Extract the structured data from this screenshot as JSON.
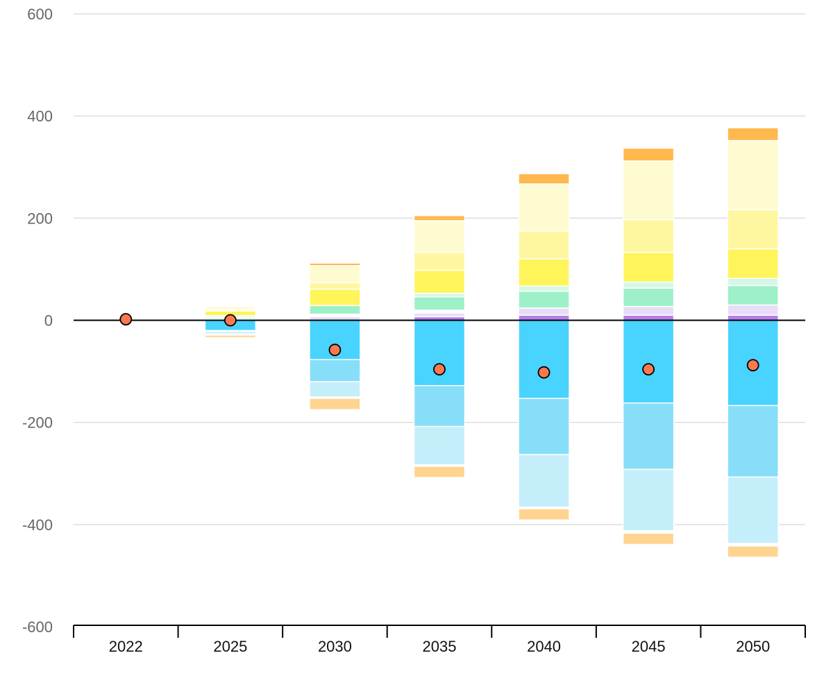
{
  "chart_data": {
    "type": "bar",
    "stacked": true,
    "categories": [
      "2022",
      "2025",
      "2030",
      "2035",
      "2040",
      "2045",
      "2050"
    ],
    "ylim": [
      -600,
      600
    ],
    "yticks": [
      600,
      400,
      200,
      0,
      -200,
      -400,
      -600
    ],
    "grid": true,
    "legend": "none",
    "title": "",
    "xlabel": "",
    "ylabel": "",
    "positive_series": [
      {
        "color": "#b57ee8",
        "values": [
          0,
          0,
          0,
          7,
          10,
          10,
          10
        ]
      },
      {
        "color": "#e8dcf8",
        "values": [
          0,
          0,
          7,
          7,
          14,
          17,
          20
        ]
      },
      {
        "color": "#ffffff",
        "values": [
          0,
          3,
          5,
          6,
          0,
          0,
          0
        ]
      },
      {
        "color": "#9ef0c8",
        "values": [
          0,
          3,
          17,
          26,
          33,
          36,
          38
        ]
      },
      {
        "color": "#d4f8e6",
        "values": [
          0,
          3,
          0,
          7,
          10,
          12,
          14
        ]
      },
      {
        "color": "#fff45a",
        "values": [
          0,
          9,
          32,
          45,
          53,
          58,
          58
        ]
      },
      {
        "color": "#fff7a0",
        "values": [
          0,
          3,
          13,
          35,
          55,
          64,
          77
        ]
      },
      {
        "color": "#fffbd0",
        "values": [
          0,
          6,
          33,
          62,
          92,
          115,
          135
        ]
      },
      {
        "color": "#ffb84d",
        "values": [
          0,
          0,
          5,
          10,
          20,
          25,
          25
        ]
      }
    ],
    "negative_series": [
      {
        "color": "#49d3ff",
        "values": [
          0,
          -20,
          -77,
          -128,
          -153,
          -162,
          -167
        ]
      },
      {
        "color": "#87def8",
        "values": [
          0,
          -2,
          -43,
          -80,
          -110,
          -130,
          -140
        ]
      },
      {
        "color": "#c5eefb",
        "values": [
          0,
          -5,
          -30,
          -75,
          -103,
          -120,
          -130
        ]
      },
      {
        "color": "#ffffff",
        "values": [
          0,
          -2,
          -3,
          -3,
          -3,
          -5,
          -5
        ]
      },
      {
        "color": "#ffd490",
        "values": [
          0,
          -5,
          -22,
          -22,
          -22,
          -22,
          -22
        ]
      }
    ],
    "net": [
      2,
      0,
      -58,
      -96,
      -102,
      -96,
      -88
    ],
    "net_color": "#f87a4e"
  }
}
